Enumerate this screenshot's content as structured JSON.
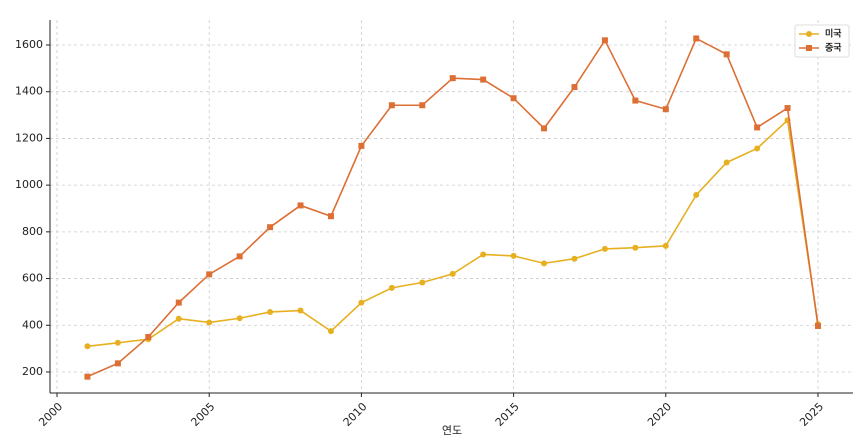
{
  "chart_data": {
    "type": "line",
    "x_label": "연도",
    "x": [
      2001,
      2002,
      2003,
      2004,
      2005,
      2006,
      2007,
      2008,
      2009,
      2010,
      2011,
      2012,
      2013,
      2014,
      2015,
      2016,
      2017,
      2018,
      2019,
      2020,
      2021,
      2022,
      2023,
      2024,
      2025
    ],
    "series": [
      {
        "name": "미국",
        "color": "#e6b020",
        "marker": "circle",
        "values": [
          310,
          325,
          340,
          428,
          412,
          430,
          457,
          463,
          375,
          497,
          560,
          583,
          620,
          703,
          697,
          665,
          685,
          727,
          732,
          740,
          958,
          1097,
          1157,
          1278,
          405
        ]
      },
      {
        "name": "중국",
        "color": "#dd6f35",
        "marker": "square",
        "values": [
          180,
          237,
          350,
          497,
          618,
          695,
          820,
          913,
          867,
          1168,
          1342,
          1342,
          1458,
          1452,
          1372,
          1243,
          1420,
          1620,
          1362,
          1325,
          1628,
          1560,
          1247,
          1330,
          397
        ]
      }
    ],
    "xlim": [
      1999.77,
      2026.15
    ],
    "xticks": [
      2000,
      2005,
      2010,
      2015,
      2020,
      2025
    ],
    "ylim": [
      110,
      1707
    ],
    "yticks": [
      200,
      400,
      600,
      800,
      1000,
      1200,
      1400,
      1600
    ],
    "grid": true,
    "legend": "upper right"
  }
}
